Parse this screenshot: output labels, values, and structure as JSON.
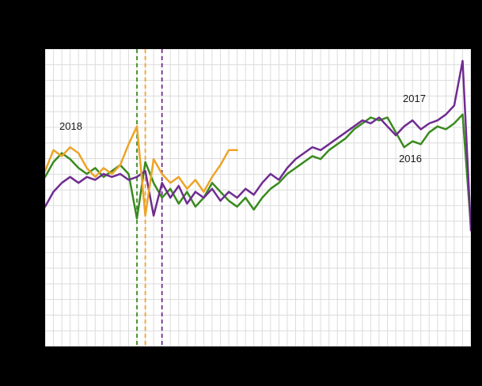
{
  "figure": {
    "background": "#000000",
    "plot_background": "#ffffff"
  },
  "chart_data": {
    "type": "line",
    "title": "",
    "xlabel": "",
    "ylabel": "",
    "x_unit": "week",
    "weeks": 52,
    "ylim": [
      0,
      100
    ],
    "grid": {
      "on": true,
      "x_divisions": 51,
      "y_divisions": 19,
      "color": "#dcdcdc"
    },
    "legend_position": "inline-labels",
    "series": [
      {
        "name": "2016",
        "color": "#3a8a1e",
        "values": [
          57,
          62,
          65,
          63,
          60,
          58,
          60,
          57,
          59,
          61,
          58,
          43,
          62,
          55,
          50,
          53,
          48,
          52,
          47,
          50,
          55,
          52,
          49,
          47,
          50,
          46,
          50,
          53,
          55,
          58,
          60,
          62,
          64,
          63,
          66,
          68,
          70,
          73,
          75,
          77,
          76,
          77,
          72,
          67,
          69,
          68,
          72,
          74,
          73,
          75,
          78,
          40
        ]
      },
      {
        "name": "2017",
        "color": "#6f2c91",
        "values": [
          47,
          52,
          55,
          57,
          55,
          57,
          56,
          58,
          57,
          58,
          56,
          57,
          59,
          44,
          55,
          50,
          54,
          48,
          52,
          50,
          53,
          49,
          52,
          50,
          53,
          51,
          55,
          58,
          56,
          60,
          63,
          65,
          67,
          66,
          68,
          70,
          72,
          74,
          76,
          75,
          77,
          74,
          71,
          74,
          76,
          73,
          75,
          76,
          78,
          81,
          96,
          39
        ]
      },
      {
        "name": "2018",
        "color": "#eda428",
        "values": [
          59,
          66,
          64,
          67,
          65,
          60,
          57,
          60,
          58,
          61,
          68,
          74,
          44,
          63,
          58,
          55,
          57,
          53,
          56,
          52,
          57,
          61,
          66,
          66
        ]
      }
    ],
    "markers": [
      {
        "name": "dashed-marker-green",
        "week": 12,
        "color": "#3a8a1e"
      },
      {
        "name": "dashed-marker-orange",
        "week": 13,
        "color": "#eda428"
      },
      {
        "name": "dashed-marker-purple",
        "week": 15,
        "color": "#6f2c91"
      }
    ],
    "annotations": [
      {
        "text": "2018"
      },
      {
        "text": "2017"
      },
      {
        "text": "2016"
      }
    ]
  }
}
